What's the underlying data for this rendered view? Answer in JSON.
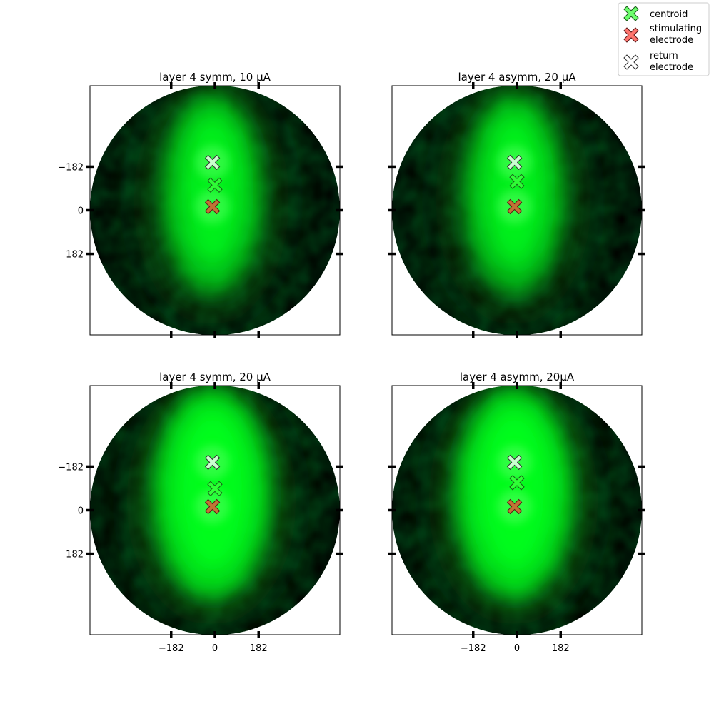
{
  "colors": {
    "background": "#000000",
    "glow": "#00ff1e",
    "centroid": "#3cff3c",
    "stimulating": "#ff3b30",
    "return": "#ffffff",
    "frame": "#000000"
  },
  "legend": {
    "placement": "top-right",
    "entries": [
      {
        "lines": [
          "centroid"
        ],
        "marker": "centroid"
      },
      {
        "lines": [
          "stimulating",
          "electrode"
        ],
        "marker": "stimulating"
      },
      {
        "lines": [
          "return",
          "electrode"
        ],
        "marker": "return"
      }
    ]
  },
  "chart_data": [
    {
      "type": "heatmap",
      "title": "layer 4 symm, 10 µA",
      "xlim": [
        -520,
        520
      ],
      "ylim": [
        -520,
        520
      ],
      "xticks": [
        -182,
        0,
        182
      ],
      "yticks": [
        -182,
        0,
        182
      ],
      "xtick_labels": [
        "",
        "",
        ""
      ],
      "ytick_labels": [
        "182",
        "0",
        "−182"
      ],
      "markers": {
        "return": [
          -10,
          200
        ],
        "centroid": [
          0,
          105
        ],
        "stimulating": [
          -10,
          15
        ]
      },
      "intensity": 0.55
    },
    {
      "type": "heatmap",
      "title": "layer 4 asymm, 20 µA",
      "xlim": [
        -520,
        520
      ],
      "ylim": [
        -520,
        520
      ],
      "xticks": [
        -182,
        0,
        182
      ],
      "yticks": [
        -182,
        0,
        182
      ],
      "xtick_labels": [
        "",
        "",
        ""
      ],
      "ytick_labels": [
        "",
        "",
        ""
      ],
      "markers": {
        "return": [
          -10,
          200
        ],
        "centroid": [
          0,
          120
        ],
        "stimulating": [
          -10,
          15
        ]
      },
      "intensity": 0.55
    },
    {
      "type": "heatmap",
      "title": "layer 4 symm, 20 µA",
      "xlim": [
        -520,
        520
      ],
      "ylim": [
        -520,
        520
      ],
      "xticks": [
        -182,
        0,
        182
      ],
      "yticks": [
        -182,
        0,
        182
      ],
      "xtick_labels": [
        "−182",
        "0",
        "182"
      ],
      "ytick_labels": [
        "182",
        "0",
        "−182"
      ],
      "markers": {
        "return": [
          -10,
          200
        ],
        "centroid": [
          0,
          90
        ],
        "stimulating": [
          -10,
          15
        ]
      },
      "intensity": 0.95
    },
    {
      "type": "heatmap",
      "title": "layer 4 asymm, 20µA",
      "xlim": [
        -520,
        520
      ],
      "ylim": [
        -520,
        520
      ],
      "xticks": [
        -182,
        0,
        182
      ],
      "yticks": [
        -182,
        0,
        182
      ],
      "xtick_labels": [
        "−182",
        "0",
        "182"
      ],
      "ytick_labels": [
        "",
        "",
        ""
      ],
      "markers": {
        "return": [
          -10,
          200
        ],
        "centroid": [
          0,
          115
        ],
        "stimulating": [
          -10,
          15
        ]
      },
      "intensity": 0.95
    }
  ]
}
